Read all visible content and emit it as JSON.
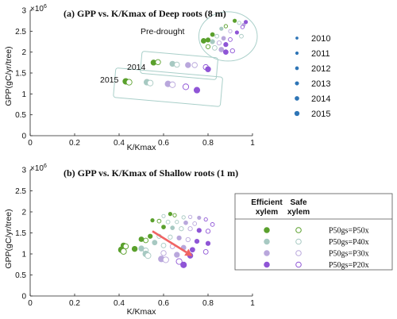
{
  "colors": {
    "green": "#5aa02c",
    "teal": "#a7c9c2",
    "lavender": "#b9a7dc",
    "purple": "#8f55d6",
    "blue": "#2e75b6",
    "arrow": "#f06464",
    "box": "#a9cfc9"
  },
  "legend_years": {
    "items": [
      "2010",
      "2011",
      "2012",
      "2013",
      "2014",
      "2015"
    ],
    "sizes": [
      1,
      1.25,
      1.5,
      1.75,
      2.05,
      2.4
    ]
  },
  "legend_scheme": {
    "head_efficient": [
      "Efficient",
      "xylem"
    ],
    "head_safe": [
      "Safe",
      "xylem"
    ],
    "rows": [
      {
        "color": "green",
        "label": "P50gs=P50x"
      },
      {
        "color": "teal",
        "label": "P50gs=P40x"
      },
      {
        "color": "lavender",
        "label": "P50gs=P30x"
      },
      {
        "color": "purple",
        "label": "P50gs=P20x"
      }
    ]
  },
  "chart_data": [
    {
      "type": "scatter",
      "title": "(a) GPP vs. K/Kmax of Deep roots (8 m)",
      "xlabel": "K/Kmax",
      "ylabel": "GPP(gC/yr/tree)",
      "exponent": "×10",
      "exponent_power": "6",
      "xlim": [
        0,
        1
      ],
      "ylim": [
        0,
        3000000
      ],
      "xticks": [
        0,
        0.2,
        0.4,
        0.6,
        0.8,
        1
      ],
      "xtick_labels": [
        "0",
        "0.2",
        "0.4",
        "0.6",
        "0.8",
        "1"
      ],
      "yticks": [
        0,
        500000,
        1000000,
        1500000,
        2000000,
        2500000,
        3000000
      ],
      "ytick_labels": [
        "0",
        "0.5",
        "1",
        "1.5",
        "2",
        "2.5",
        "3"
      ],
      "annotations": [
        "Pre-drought",
        "2014",
        "2015"
      ],
      "clusters": [
        {
          "name": "Pre-drought",
          "x_range": [
            0.78,
            1.0
          ],
          "y_range": [
            1900000,
            2850000
          ]
        },
        {
          "name": "2014",
          "x_range": [
            0.52,
            0.82
          ],
          "y_range": [
            1530000,
            1830000
          ]
        },
        {
          "name": "2015",
          "x_range": [
            0.4,
            0.84
          ],
          "y_range": [
            920000,
            1400000
          ]
        }
      ],
      "points": [
        {
          "x": 0.92,
          "y": 2750000,
          "c": "green",
          "f": true,
          "s": 1
        },
        {
          "x": 0.94,
          "y": 2700000,
          "c": "teal",
          "f": false,
          "s": 1
        },
        {
          "x": 0.96,
          "y": 2650000,
          "c": "lavender",
          "f": true,
          "s": 1
        },
        {
          "x": 0.955,
          "y": 2600000,
          "c": "purple",
          "f": false,
          "s": 1
        },
        {
          "x": 0.97,
          "y": 2720000,
          "c": "purple",
          "f": true,
          "s": 1
        },
        {
          "x": 0.88,
          "y": 2620000,
          "c": "green",
          "f": false,
          "s": 1
        },
        {
          "x": 0.86,
          "y": 2560000,
          "c": "teal",
          "f": true,
          "s": 1
        },
        {
          "x": 0.9,
          "y": 2500000,
          "c": "lavender",
          "f": false,
          "s": 1
        },
        {
          "x": 0.93,
          "y": 2470000,
          "c": "purple",
          "f": true,
          "s": 1
        },
        {
          "x": 0.95,
          "y": 2380000,
          "c": "teal",
          "f": false,
          "s": 1.25
        },
        {
          "x": 0.82,
          "y": 2420000,
          "c": "green",
          "f": true,
          "s": 1.25
        },
        {
          "x": 0.84,
          "y": 2380000,
          "c": "teal",
          "f": false,
          "s": 1.25
        },
        {
          "x": 0.87,
          "y": 2330000,
          "c": "lavender",
          "f": true,
          "s": 1.25
        },
        {
          "x": 0.9,
          "y": 2300000,
          "c": "purple",
          "f": false,
          "s": 1.25
        },
        {
          "x": 0.8,
          "y": 2290000,
          "c": "green",
          "f": true,
          "s": 1.5
        },
        {
          "x": 0.82,
          "y": 2250000,
          "c": "teal",
          "f": true,
          "s": 1.5
        },
        {
          "x": 0.85,
          "y": 2220000,
          "c": "lavender",
          "f": false,
          "s": 1.5
        },
        {
          "x": 0.88,
          "y": 2180000,
          "c": "purple",
          "f": true,
          "s": 1.5
        },
        {
          "x": 0.78,
          "y": 2270000,
          "c": "green",
          "f": true,
          "s": 1.75
        },
        {
          "x": 0.8,
          "y": 2130000,
          "c": "green",
          "f": false,
          "s": 1.5
        },
        {
          "x": 0.83,
          "y": 2100000,
          "c": "teal",
          "f": false,
          "s": 1.75
        },
        {
          "x": 0.86,
          "y": 2060000,
          "c": "lavender",
          "f": true,
          "s": 1.75
        },
        {
          "x": 0.88,
          "y": 2000000,
          "c": "purple",
          "f": true,
          "s": 1.75
        },
        {
          "x": 0.91,
          "y": 2030000,
          "c": "purple",
          "f": false,
          "s": 1.5
        },
        {
          "x": 0.555,
          "y": 1750000,
          "c": "green",
          "f": true,
          "s": 2.05
        },
        {
          "x": 0.575,
          "y": 1760000,
          "c": "green",
          "f": false,
          "s": 2.05
        },
        {
          "x": 0.64,
          "y": 1720000,
          "c": "teal",
          "f": true,
          "s": 2.05
        },
        {
          "x": 0.66,
          "y": 1700000,
          "c": "teal",
          "f": false,
          "s": 2.05
        },
        {
          "x": 0.71,
          "y": 1690000,
          "c": "lavender",
          "f": true,
          "s": 2.05
        },
        {
          "x": 0.74,
          "y": 1690000,
          "c": "lavender",
          "f": false,
          "s": 2.05
        },
        {
          "x": 0.79,
          "y": 1640000,
          "c": "purple",
          "f": false,
          "s": 2.05
        },
        {
          "x": 0.8,
          "y": 1590000,
          "c": "purple",
          "f": true,
          "s": 2.05
        },
        {
          "x": 0.43,
          "y": 1300000,
          "c": "green",
          "f": true,
          "s": 2.4
        },
        {
          "x": 0.445,
          "y": 1280000,
          "c": "green",
          "f": false,
          "s": 2.4
        },
        {
          "x": 0.525,
          "y": 1280000,
          "c": "teal",
          "f": true,
          "s": 2.4
        },
        {
          "x": 0.54,
          "y": 1260000,
          "c": "teal",
          "f": false,
          "s": 2.4
        },
        {
          "x": 0.62,
          "y": 1240000,
          "c": "lavender",
          "f": true,
          "s": 2.4
        },
        {
          "x": 0.64,
          "y": 1220000,
          "c": "lavender",
          "f": false,
          "s": 2.4
        },
        {
          "x": 0.7,
          "y": 1170000,
          "c": "purple",
          "f": false,
          "s": 2.4
        },
        {
          "x": 0.75,
          "y": 1090000,
          "c": "purple",
          "f": true,
          "s": 2.4
        }
      ]
    },
    {
      "type": "scatter",
      "title": "(b) GPP vs. K/Kmax of Shallow roots (1 m)",
      "xlabel": "K/Kmax",
      "ylabel": "GPP(gC/yr/tree)",
      "exponent": "×10",
      "exponent_power": "6",
      "xlim": [
        0,
        1
      ],
      "ylim": [
        0,
        3000000
      ],
      "xticks": [
        0,
        0.2,
        0.4,
        0.6,
        0.8,
        1
      ],
      "xtick_labels": [
        "0",
        "0.2",
        "0.4",
        "0.6",
        "0.8",
        "1"
      ],
      "yticks": [
        0,
        500000,
        1000000,
        1500000,
        2000000,
        2500000,
        3000000
      ],
      "ytick_labels": [
        "0",
        "0.5",
        "1",
        "1.5",
        "2",
        "2.5",
        "3"
      ],
      "arrow": {
        "from": [
          0.55,
          1540000
        ],
        "to": [
          0.73,
          950000
        ]
      },
      "points": [
        {
          "x": 0.63,
          "y": 1950000,
          "c": "green",
          "f": true,
          "s": 1
        },
        {
          "x": 0.65,
          "y": 1920000,
          "c": "green",
          "f": false,
          "s": 1
        },
        {
          "x": 0.6,
          "y": 1900000,
          "c": "teal",
          "f": false,
          "s": 1
        },
        {
          "x": 0.69,
          "y": 1870000,
          "c": "teal",
          "f": false,
          "s": 1
        },
        {
          "x": 0.72,
          "y": 1880000,
          "c": "lavender",
          "f": false,
          "s": 1
        },
        {
          "x": 0.76,
          "y": 1860000,
          "c": "lavender",
          "f": true,
          "s": 1
        },
        {
          "x": 0.79,
          "y": 1820000,
          "c": "purple",
          "f": false,
          "s": 1
        },
        {
          "x": 0.55,
          "y": 1800000,
          "c": "green",
          "f": true,
          "s": 1
        },
        {
          "x": 0.58,
          "y": 1780000,
          "c": "green",
          "f": false,
          "s": 1.25
        },
        {
          "x": 0.62,
          "y": 1760000,
          "c": "teal",
          "f": false,
          "s": 1.25
        },
        {
          "x": 0.66,
          "y": 1760000,
          "c": "teal",
          "f": false,
          "s": 1
        },
        {
          "x": 0.7,
          "y": 1740000,
          "c": "lavender",
          "f": true,
          "s": 1.25
        },
        {
          "x": 0.74,
          "y": 1720000,
          "c": "lavender",
          "f": false,
          "s": 1.25
        },
        {
          "x": 0.82,
          "y": 1700000,
          "c": "purple",
          "f": false,
          "s": 1.25
        },
        {
          "x": 0.6,
          "y": 1640000,
          "c": "green",
          "f": true,
          "s": 1.25
        },
        {
          "x": 0.64,
          "y": 1620000,
          "c": "teal",
          "f": true,
          "s": 1.25
        },
        {
          "x": 0.68,
          "y": 1600000,
          "c": "teal",
          "f": false,
          "s": 1.5
        },
        {
          "x": 0.72,
          "y": 1600000,
          "c": "lavender",
          "f": false,
          "s": 1.5
        },
        {
          "x": 0.76,
          "y": 1560000,
          "c": "purple",
          "f": true,
          "s": 1.5
        },
        {
          "x": 0.8,
          "y": 1540000,
          "c": "purple",
          "f": false,
          "s": 1.5
        },
        {
          "x": 0.54,
          "y": 1420000,
          "c": "green",
          "f": true,
          "s": 1.5
        },
        {
          "x": 0.58,
          "y": 1420000,
          "c": "teal",
          "f": false,
          "s": 1.5
        },
        {
          "x": 0.63,
          "y": 1400000,
          "c": "teal",
          "f": false,
          "s": 1.5
        },
        {
          "x": 0.67,
          "y": 1380000,
          "c": "lavender",
          "f": true,
          "s": 1.5
        },
        {
          "x": 0.71,
          "y": 1340000,
          "c": "lavender",
          "f": false,
          "s": 1.5
        },
        {
          "x": 0.75,
          "y": 1300000,
          "c": "purple",
          "f": true,
          "s": 1.5
        },
        {
          "x": 0.8,
          "y": 1250000,
          "c": "purple",
          "f": true,
          "s": 1.5
        },
        {
          "x": 0.52,
          "y": 1320000,
          "c": "green",
          "f": false,
          "s": 1.75
        },
        {
          "x": 0.5,
          "y": 1350000,
          "c": "green",
          "f": true,
          "s": 1.75
        },
        {
          "x": 0.56,
          "y": 1270000,
          "c": "teal",
          "f": true,
          "s": 1.75
        },
        {
          "x": 0.6,
          "y": 1200000,
          "c": "teal",
          "f": false,
          "s": 1.75
        },
        {
          "x": 0.64,
          "y": 1180000,
          "c": "lavender",
          "f": false,
          "s": 1.75
        },
        {
          "x": 0.69,
          "y": 1150000,
          "c": "lavender",
          "f": true,
          "s": 1.75
        },
        {
          "x": 0.73,
          "y": 1100000,
          "c": "purple",
          "f": true,
          "s": 1.75
        },
        {
          "x": 0.79,
          "y": 1050000,
          "c": "purple",
          "f": false,
          "s": 1.75
        },
        {
          "x": 0.42,
          "y": 1200000,
          "c": "green",
          "f": true,
          "s": 2.05
        },
        {
          "x": 0.43,
          "y": 1180000,
          "c": "green",
          "f": false,
          "s": 2.05
        },
        {
          "x": 0.47,
          "y": 1120000,
          "c": "green",
          "f": true,
          "s": 2.05
        },
        {
          "x": 0.5,
          "y": 1130000,
          "c": "teal",
          "f": true,
          "s": 2.05
        },
        {
          "x": 0.52,
          "y": 1080000,
          "c": "teal",
          "f": false,
          "s": 2.05
        },
        {
          "x": 0.6,
          "y": 1020000,
          "c": "lavender",
          "f": false,
          "s": 2.05
        },
        {
          "x": 0.66,
          "y": 980000,
          "c": "lavender",
          "f": true,
          "s": 2.05
        },
        {
          "x": 0.72,
          "y": 960000,
          "c": "purple",
          "f": true,
          "s": 2.05
        },
        {
          "x": 0.41,
          "y": 1100000,
          "c": "green",
          "f": true,
          "s": 2.4
        },
        {
          "x": 0.42,
          "y": 1060000,
          "c": "green",
          "f": false,
          "s": 2.4
        },
        {
          "x": 0.52,
          "y": 1000000,
          "c": "teal",
          "f": true,
          "s": 2.4
        },
        {
          "x": 0.53,
          "y": 960000,
          "c": "teal",
          "f": false,
          "s": 2.4
        },
        {
          "x": 0.59,
          "y": 880000,
          "c": "lavender",
          "f": true,
          "s": 2.4
        },
        {
          "x": 0.61,
          "y": 860000,
          "c": "lavender",
          "f": false,
          "s": 2.4
        },
        {
          "x": 0.67,
          "y": 820000,
          "c": "purple",
          "f": false,
          "s": 2.4
        },
        {
          "x": 0.69,
          "y": 740000,
          "c": "purple",
          "f": true,
          "s": 2.4
        }
      ]
    }
  ]
}
